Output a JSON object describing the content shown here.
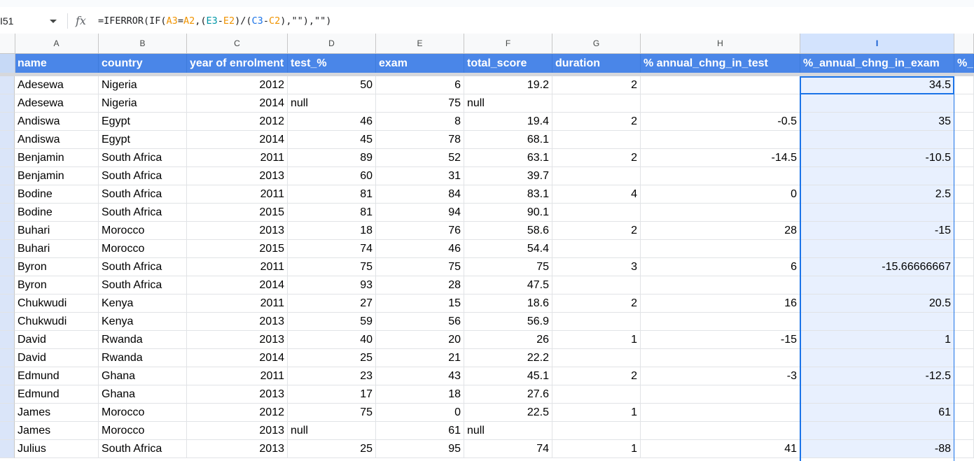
{
  "formula_bar": {
    "name_box": "I51",
    "formula_parts": [
      {
        "text": "=IFERROR(IF(",
        "cls": ""
      },
      {
        "text": "A3",
        "cls": "f-orange"
      },
      {
        "text": "=",
        "cls": ""
      },
      {
        "text": "A2",
        "cls": "f-orange"
      },
      {
        "text": ",(",
        "cls": ""
      },
      {
        "text": "E3",
        "cls": "f-teal"
      },
      {
        "text": "-",
        "cls": ""
      },
      {
        "text": "E2",
        "cls": "f-orange"
      },
      {
        "text": ")/(",
        "cls": ""
      },
      {
        "text": "C3",
        "cls": "f-blue"
      },
      {
        "text": "-",
        "cls": ""
      },
      {
        "text": "C2",
        "cls": "f-orange"
      },
      {
        "text": "),\"\"),\"\")",
        "cls": ""
      }
    ],
    "fx_icon": "fx-function-icon"
  },
  "column_letters": [
    "A",
    "B",
    "C",
    "D",
    "E",
    "F",
    "G",
    "H",
    "I"
  ],
  "selected_column": "I",
  "headers": [
    "name",
    "country",
    "year of enrolment",
    "test_%",
    "exam",
    "total_score",
    "duration",
    "% annual_chng_in_test",
    "%_annual_chng_in_exam",
    "%_"
  ],
  "rows": [
    [
      "Adesewa",
      "Nigeria",
      "2012",
      "50",
      "6",
      "19.2",
      "2",
      "",
      "34.5"
    ],
    [
      "Adesewa",
      "Nigeria",
      "2014",
      "null",
      "75",
      "null",
      "",
      "",
      ""
    ],
    [
      "Andiswa",
      "Egypt",
      "2012",
      "46",
      "8",
      "19.4",
      "2",
      "-0.5",
      "35"
    ],
    [
      "Andiswa",
      "Egypt",
      "2014",
      "45",
      "78",
      "68.1",
      "",
      "",
      ""
    ],
    [
      "Benjamin",
      "South Africa",
      "2011",
      "89",
      "52",
      "63.1",
      "2",
      "-14.5",
      "-10.5"
    ],
    [
      "Benjamin",
      "South Africa",
      "2013",
      "60",
      "31",
      "39.7",
      "",
      "",
      ""
    ],
    [
      "Bodine",
      "South Africa",
      "2011",
      "81",
      "84",
      "83.1",
      "4",
      "0",
      "2.5"
    ],
    [
      "Bodine",
      "South Africa",
      "2015",
      "81",
      "94",
      "90.1",
      "",
      "",
      ""
    ],
    [
      "Buhari",
      "Morocco",
      "2013",
      "18",
      "76",
      "58.6",
      "2",
      "28",
      "-15"
    ],
    [
      "Buhari",
      "Morocco",
      "2015",
      "74",
      "46",
      "54.4",
      "",
      "",
      ""
    ],
    [
      "Byron",
      "South Africa",
      "2011",
      "75",
      "75",
      "75",
      "3",
      "6",
      "-15.66666667"
    ],
    [
      "Byron",
      "South Africa",
      "2014",
      "93",
      "28",
      "47.5",
      "",
      "",
      ""
    ],
    [
      "Chukwudi",
      "Kenya",
      "2011",
      "27",
      "15",
      "18.6",
      "2",
      "16",
      "20.5"
    ],
    [
      "Chukwudi",
      "Kenya",
      "2013",
      "59",
      "56",
      "56.9",
      "",
      "",
      ""
    ],
    [
      "David",
      "Rwanda",
      "2013",
      "40",
      "20",
      "26",
      "1",
      "-15",
      "1"
    ],
    [
      "David",
      "Rwanda",
      "2014",
      "25",
      "21",
      "22.2",
      "",
      "",
      ""
    ],
    [
      "Edmund",
      "Ghana",
      "2011",
      "23",
      "43",
      "45.1",
      "2",
      "-3",
      "-12.5"
    ],
    [
      "Edmund",
      "Ghana",
      "2013",
      "17",
      "18",
      "27.6",
      "",
      "",
      ""
    ],
    [
      "James",
      "Morocco",
      "2012",
      "75",
      "0",
      "22.5",
      "1",
      "",
      "61"
    ],
    [
      "James",
      "Morocco",
      "2013",
      "null",
      "61",
      "null",
      "",
      "",
      ""
    ],
    [
      "Julius",
      "South Africa",
      "2013",
      "25",
      "95",
      "74",
      "1",
      "41",
      "-88"
    ]
  ],
  "colors": {
    "header_bg": "#4a86e8",
    "selection": "#1a73e8",
    "selected_column_bg": "#e8f0fe"
  }
}
